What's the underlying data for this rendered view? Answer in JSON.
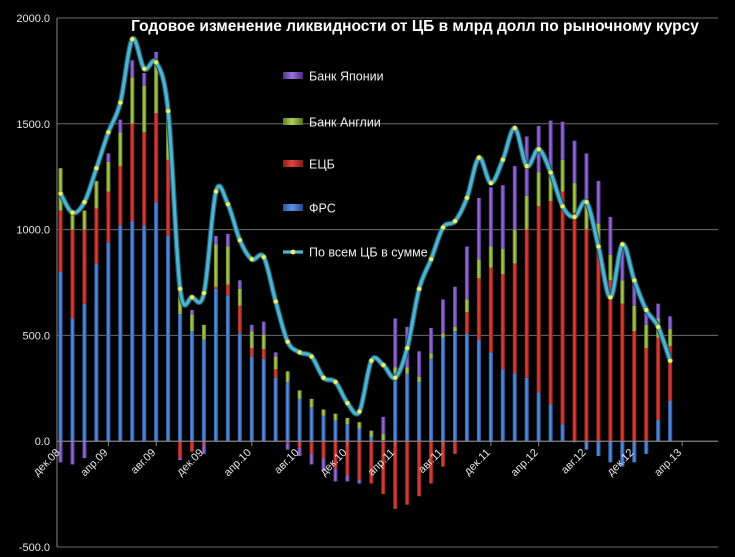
{
  "chart_data": {
    "type": "bar",
    "stacked": true,
    "title": "Годовое изменение ликвидности от ЦБ в млрд долл по рыночному курсу",
    "ylim": [
      -500,
      2000
    ],
    "yticks": [
      "2000.0",
      "1500.0",
      "1000.0",
      "500.0",
      "0.0",
      "-500.0"
    ],
    "ytick_values": [
      2000,
      1500,
      1000,
      500,
      0,
      -500
    ],
    "grid": true,
    "legend_position": "inside-top-left",
    "xtick_labels": [
      "дек.08",
      "апр.09",
      "авг.09",
      "дек.09",
      "апр.10",
      "авг.10",
      "дек.10",
      "апр.11",
      "авг.11",
      "дек.11",
      "апр.12",
      "авг.12",
      "дек.12",
      "апр.13"
    ],
    "xtick_months": [
      0,
      4,
      8,
      12,
      16,
      20,
      24,
      28,
      32,
      36,
      40,
      44,
      48,
      52
    ],
    "colors": {
      "boj": "#7a4fbf",
      "boe": "#8dab3c",
      "ecb": "#c0302c",
      "fed": "#3d74c4",
      "total": "#4fb3cf",
      "marker": "#e9f070"
    },
    "legend": [
      {
        "key": "boj",
        "label": "Банк Японии"
      },
      {
        "key": "boe",
        "label": "Банк Англии"
      },
      {
        "key": "ecb",
        "label": "ЕЦБ"
      },
      {
        "key": "fed",
        "label": "ФРС"
      },
      {
        "key": "total",
        "label": "По всем ЦБ в сумме"
      }
    ],
    "months": [
      0,
      1,
      2,
      3,
      4,
      5,
      6,
      7,
      8,
      9,
      10,
      11,
      12,
      13,
      14,
      15,
      16,
      17,
      18,
      19,
      20,
      21,
      22,
      23,
      24,
      25,
      26,
      27,
      28,
      29,
      30,
      31,
      32,
      33,
      34,
      35,
      36,
      37,
      38,
      39,
      40,
      41,
      42,
      43,
      44,
      45,
      46,
      47,
      48,
      49,
      50,
      51
    ],
    "series": [
      {
        "name": "ФРС",
        "key": "fed",
        "values": [
          800,
          580,
          650,
          840,
          940,
          1020,
          1040,
          1020,
          1130,
          970,
          600,
          520,
          480,
          720,
          690,
          510,
          400,
          390,
          300,
          280,
          200,
          160,
          120,
          100,
          80,
          60,
          20,
          5,
          320,
          320,
          280,
          390,
          490,
          520,
          510,
          480,
          420,
          340,
          320,
          300,
          230,
          175,
          80,
          -5,
          -40,
          -70,
          -100,
          -120,
          -100,
          -60,
          100,
          190
        ]
      },
      {
        "name": "ЕЦБ",
        "key": "ecb",
        "values": [
          290,
          420,
          350,
          260,
          240,
          280,
          460,
          440,
          420,
          360,
          -80,
          -50,
          -20,
          10,
          50,
          130,
          40,
          45,
          40,
          -10,
          -30,
          -60,
          -80,
          -130,
          -160,
          -180,
          -200,
          -250,
          -320,
          -300,
          -260,
          -200,
          -120,
          -60,
          100,
          290,
          400,
          450,
          520,
          700,
          880,
          960,
          1100,
          1080,
          1000,
          900,
          760,
          650,
          520,
          440,
          390,
          260
        ]
      },
      {
        "name": "Банк Англии",
        "key": "boe",
        "values": [
          200,
          80,
          90,
          130,
          140,
          160,
          220,
          220,
          240,
          200,
          100,
          80,
          70,
          200,
          180,
          80,
          80,
          70,
          60,
          50,
          40,
          40,
          30,
          30,
          30,
          30,
          30,
          30,
          30,
          30,
          25,
          25,
          20,
          20,
          60,
          90,
          100,
          120,
          160,
          160,
          160,
          160,
          150,
          140,
          140,
          130,
          120,
          110,
          120,
          110,
          90,
          80
        ]
      },
      {
        "name": "Банк Японии",
        "key": "boj",
        "values": [
          -100,
          -110,
          -80,
          0,
          40,
          60,
          80,
          60,
          50,
          40,
          -10,
          20,
          -40,
          40,
          60,
          40,
          30,
          60,
          20,
          -30,
          -40,
          -50,
          -60,
          -60,
          -30,
          -20,
          0,
          80,
          230,
          190,
          120,
          120,
          160,
          190,
          250,
          290,
          280,
          300,
          300,
          280,
          220,
          220,
          180,
          200,
          220,
          200,
          180,
          160,
          110,
          90,
          70,
          60
        ]
      },
      {
        "name": "По всем ЦБ в сумме",
        "key": "total",
        "type": "line",
        "values": [
          1170,
          1080,
          1130,
          1290,
          1460,
          1600,
          1900,
          1760,
          1790,
          1560,
          720,
          680,
          700,
          1180,
          1120,
          950,
          860,
          870,
          660,
          470,
          420,
          400,
          300,
          280,
          180,
          140,
          380,
          360,
          300,
          440,
          720,
          860,
          1010,
          1040,
          1150,
          1340,
          1220,
          1330,
          1480,
          1300,
          1380,
          1270,
          1110,
          1060,
          1130,
          920,
          680,
          930,
          760,
          620,
          540,
          380
        ]
      }
    ]
  }
}
